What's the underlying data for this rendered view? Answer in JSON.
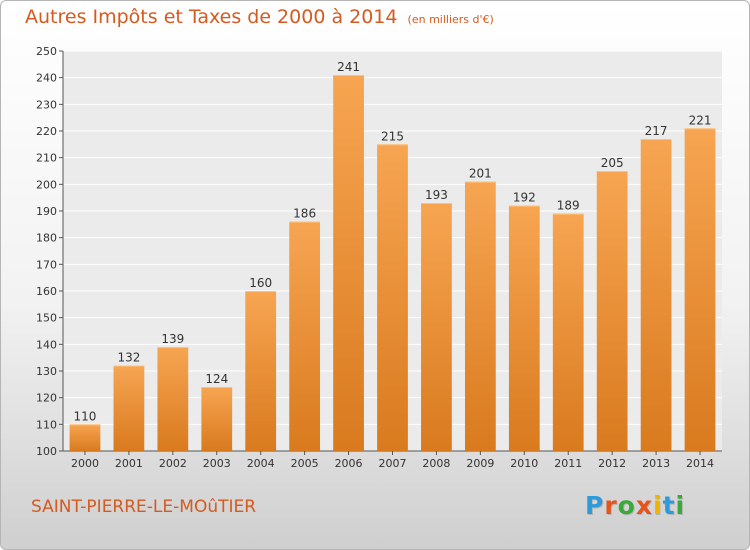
{
  "chart_data": {
    "type": "bar",
    "title": "Autres Impôts et Taxes de 2000 à 2014",
    "subtitle": "(en milliers d'€)",
    "categories": [
      "2000",
      "2001",
      "2002",
      "2003",
      "2004",
      "2005",
      "2006",
      "2007",
      "2008",
      "2009",
      "2010",
      "2011",
      "2012",
      "2013",
      "2014"
    ],
    "values": [
      110,
      132,
      139,
      124,
      160,
      186,
      241,
      215,
      193,
      201,
      192,
      189,
      205,
      217,
      221
    ],
    "ylim": [
      100,
      250
    ],
    "yticks": [
      "100",
      "110",
      "120",
      "130",
      "140",
      "150",
      "160",
      "170",
      "180",
      "190",
      "200",
      "210",
      "220",
      "230",
      "240",
      "250"
    ],
    "grid": true,
    "legend": "none",
    "bar_color_top": "#f7a552",
    "bar_color_bottom": "#d97a1e"
  },
  "footer": {
    "town": "SAINT-PIERRE-LE-MOûTIER",
    "logo_text": "Proxiti",
    "logo_colors": [
      "#2e9ad8",
      "#e5541c",
      "#3aa83a",
      "#e5541c",
      "#f0b400",
      "#2e9ad8",
      "#3aa83a"
    ]
  }
}
